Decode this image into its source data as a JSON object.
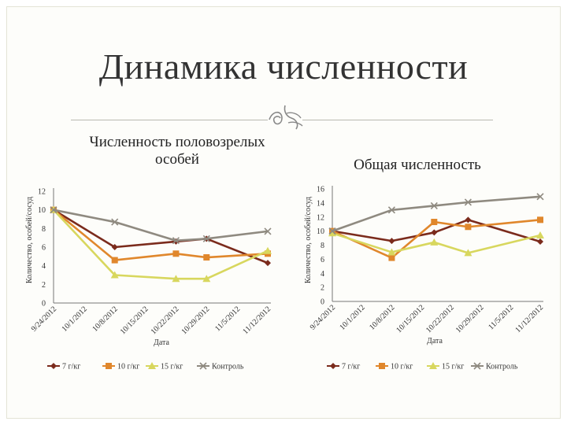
{
  "slide": {
    "title": "Динамика численности",
    "ornament_icon": "ornament-icon"
  },
  "chart_data": [
    {
      "type": "line",
      "title": "Численность половозрелых особей",
      "xlabel": "Дата",
      "ylabel": "Количество, особей/сосуд",
      "categories": [
        "9/24/2012",
        "10/1/2012",
        "10/8/2012",
        "10/15/2012",
        "10/22/2012",
        "10/29/2012",
        "11/5/2012",
        "11/12/2012"
      ],
      "x": [
        "9/24/2012",
        "10/8/2012",
        "10/22/2012",
        "10/29/2012",
        "11/12/2012"
      ],
      "ylim": [
        0,
        12
      ],
      "yticks": [
        0,
        2,
        4,
        6,
        8,
        10,
        12
      ],
      "grid": false,
      "legend_position": "bottom",
      "series": [
        {
          "name": "7 г/кг",
          "marker": "diamond",
          "color": "#7b2b1c",
          "values": [
            10,
            6,
            6.6,
            6.9,
            4.3
          ]
        },
        {
          "name": "10 г/кг",
          "marker": "square",
          "color": "#e0872c",
          "values": [
            10,
            4.6,
            5.3,
            4.9,
            5.3
          ]
        },
        {
          "name": "15 г/кг",
          "marker": "triangle",
          "color": "#d8d75e",
          "values": [
            10,
            3,
            2.6,
            2.6,
            5.6
          ]
        },
        {
          "name": "Контроль",
          "marker": "x",
          "color": "#8f8a80",
          "values": [
            10,
            8.7,
            6.7,
            6.9,
            7.7
          ]
        }
      ]
    },
    {
      "type": "line",
      "title": "Общая численность",
      "xlabel": "Дата",
      "ylabel": "Количество, особей/сосуд",
      "categories": [
        "9/24/2012",
        "10/1/2012",
        "10/8/2012",
        "10/15/2012",
        "10/22/2012",
        "10/29/2012",
        "11/5/2012",
        "11/12/2012"
      ],
      "x": [
        "9/24/2012",
        "10/8/2012",
        "10/18/2012",
        "10/26/2012",
        "11/12/2012"
      ],
      "ylim": [
        0,
        16
      ],
      "yticks": [
        0,
        2,
        4,
        6,
        8,
        10,
        12,
        14,
        16
      ],
      "grid": false,
      "legend_position": "bottom",
      "series": [
        {
          "name": "7 г/кг",
          "marker": "diamond",
          "color": "#7b2b1c",
          "values": [
            10,
            8.6,
            9.8,
            11.6,
            8.5
          ]
        },
        {
          "name": "10 г/кг",
          "marker": "square",
          "color": "#e0872c",
          "values": [
            10,
            6.2,
            11.3,
            10.6,
            11.6
          ]
        },
        {
          "name": "15 г/кг",
          "marker": "triangle",
          "color": "#d8d75e",
          "values": [
            9.7,
            7,
            8.4,
            6.9,
            9.4
          ]
        },
        {
          "name": "Контроль",
          "marker": "x",
          "color": "#8f8a80",
          "values": [
            10,
            13,
            13.6,
            14.1,
            14.9
          ]
        }
      ]
    }
  ]
}
